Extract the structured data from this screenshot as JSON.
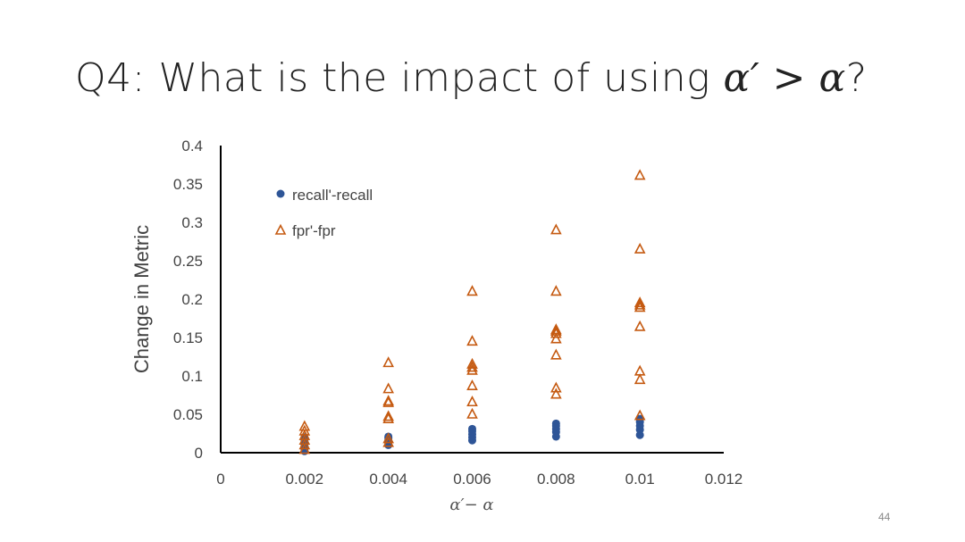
{
  "slide": {
    "title_prefix": "Q4: What is the impact of using ",
    "title_math": "α′ > α",
    "title_suffix": "?",
    "page_number": "44"
  },
  "chart_data": {
    "type": "scatter",
    "xlabel": "α′− α",
    "ylabel": "Change in Metric",
    "xlim": [
      0,
      0.012
    ],
    "ylim": [
      0,
      0.4
    ],
    "x_ticks": [
      "0",
      "0.002",
      "0.004",
      "0.006",
      "0.008",
      "0.01",
      "0.012"
    ],
    "y_ticks": [
      "0",
      "0.05",
      "0.1",
      "0.15",
      "0.2",
      "0.25",
      "0.3",
      "0.35",
      "0.4"
    ],
    "grid": false,
    "legend_position": "top-left",
    "colors": {
      "recall": "#2e5597",
      "fpr": "#c55a11"
    },
    "series": [
      {
        "name": "recall'-recall",
        "marker": "circle",
        "x": [
          0.002,
          0.002,
          0.002,
          0.002,
          0.002,
          0.002,
          0.002,
          0.004,
          0.004,
          0.004,
          0.004,
          0.004,
          0.006,
          0.006,
          0.006,
          0.006,
          0.006,
          0.008,
          0.008,
          0.008,
          0.008,
          0.008,
          0.01,
          0.01,
          0.01,
          0.01,
          0.01
        ],
        "y": [
          0.002,
          0.005,
          0.008,
          0.011,
          0.014,
          0.017,
          0.02,
          0.01,
          0.013,
          0.016,
          0.019,
          0.021,
          0.016,
          0.02,
          0.024,
          0.028,
          0.031,
          0.021,
          0.027,
          0.031,
          0.035,
          0.038,
          0.023,
          0.03,
          0.035,
          0.04,
          0.044
        ]
      },
      {
        "name": "fpr'-fpr",
        "marker": "triangle",
        "x": [
          0.002,
          0.002,
          0.002,
          0.002,
          0.002,
          0.002,
          0.004,
          0.004,
          0.004,
          0.004,
          0.004,
          0.004,
          0.004,
          0.004,
          0.006,
          0.006,
          0.006,
          0.006,
          0.006,
          0.006,
          0.006,
          0.006,
          0.008,
          0.008,
          0.008,
          0.008,
          0.008,
          0.008,
          0.008,
          0.008,
          0.008,
          0.01,
          0.01,
          0.01,
          0.01,
          0.01,
          0.01,
          0.01,
          0.01,
          0.01
        ],
        "y": [
          0.004,
          0.01,
          0.016,
          0.022,
          0.028,
          0.034,
          0.018,
          0.044,
          0.047,
          0.065,
          0.067,
          0.083,
          0.117,
          0.013,
          0.05,
          0.066,
          0.087,
          0.107,
          0.111,
          0.115,
          0.145,
          0.21,
          0.076,
          0.084,
          0.127,
          0.148,
          0.155,
          0.158,
          0.16,
          0.21,
          0.29,
          0.048,
          0.095,
          0.106,
          0.164,
          0.189,
          0.192,
          0.195,
          0.265,
          0.361
        ]
      }
    ]
  }
}
